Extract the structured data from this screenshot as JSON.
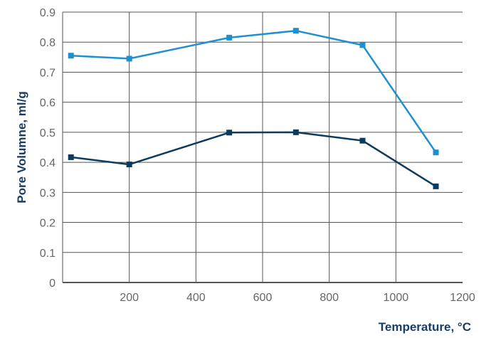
{
  "chart_data": {
    "type": "line",
    "title": "",
    "xlabel": "Temperature, °C",
    "ylabel": "Pore Volumne, ml/g",
    "xlim": [
      0,
      1200
    ],
    "ylim": [
      0,
      0.9
    ],
    "x_ticks": [
      "200",
      "400",
      "600",
      "800",
      "1000",
      "1200"
    ],
    "y_ticks": [
      "0",
      "0.1",
      "0.2",
      "0.3",
      "0.4",
      "0.5",
      "0.6",
      "0.7",
      "0.8",
      "0.9"
    ],
    "grid": true,
    "legend": "none",
    "series": [
      {
        "color": "#1e90d0",
        "marker": "square",
        "x": [
          25,
          200,
          500,
          700,
          900,
          1120
        ],
        "y": [
          0.755,
          0.745,
          0.815,
          0.838,
          0.79,
          0.433
        ]
      },
      {
        "color": "#0d3b5e",
        "marker": "square",
        "x": [
          25,
          200,
          500,
          700,
          900,
          1120
        ],
        "y": [
          0.417,
          0.393,
          0.499,
          0.5,
          0.472,
          0.32
        ]
      }
    ]
  }
}
